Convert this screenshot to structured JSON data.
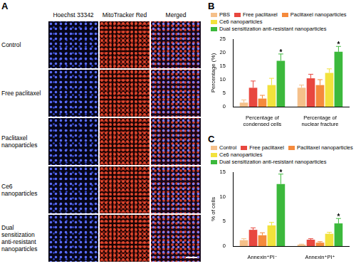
{
  "figure_a": {
    "letter": "A",
    "columns": [
      "Hoechst 33342",
      "MitoTracker Red",
      "Merged"
    ],
    "rows": [
      "Control",
      "Free paclitaxel",
      "Paclitaxel nanoparticles",
      "Ce6 nanoparticles",
      "Dual sensitization anti-resistant nanoparticles"
    ]
  },
  "chart_data": [
    {
      "letter": "B",
      "type": "bar",
      "categories": [
        "Percentage of condensed cells",
        "Percentage of nuclear fracture"
      ],
      "y_label": "Percentage (%)",
      "ylim": [
        0,
        25
      ],
      "yticks": [
        0,
        5,
        10,
        15,
        20,
        25
      ],
      "grid": false,
      "legend": "top",
      "series": [
        {
          "name": "PBS",
          "color": "#f5c08a",
          "values": [
            1.5,
            7
          ],
          "errors": [
            1,
            1
          ]
        },
        {
          "name": "Free paclitaxel",
          "color": "#e8473f",
          "values": [
            7,
            10.5
          ],
          "errors": [
            2.5,
            1.5
          ]
        },
        {
          "name": "Paclitaxel nanoparticles",
          "color": "#f58a3c",
          "values": [
            3,
            8
          ],
          "errors": [
            1.2,
            2
          ]
        },
        {
          "name": "Ce6 nanoparticles",
          "color": "#f2e23c",
          "values": [
            8,
            12.5
          ],
          "errors": [
            2.5,
            1.5
          ]
        },
        {
          "name": "Dual sensitization anti-resistant nanoparticles",
          "color": "#3cb93c",
          "values": [
            17,
            20.3
          ],
          "errors": [
            2.5,
            2
          ]
        }
      ],
      "annotations": [
        {
          "series": "Dual sensitization anti-resistant nanoparticles",
          "category": "Percentage of condensed cells",
          "text": "*"
        },
        {
          "series": "Dual sensitization anti-resistant nanoparticles",
          "category": "Percentage of nuclear fracture",
          "text": "*"
        }
      ]
    },
    {
      "letter": "C",
      "type": "bar",
      "categories": [
        "Annexin⁺PI⁻",
        "Annexin⁺PI⁺"
      ],
      "y_label": "% of cells",
      "ylim": [
        0,
        15
      ],
      "yticks": [
        0,
        5,
        10,
        15
      ],
      "grid": false,
      "legend": "top",
      "series": [
        {
          "name": "Control",
          "color": "#f5c08a",
          "values": [
            1.2,
            0.3
          ],
          "errors": [
            0.3,
            0.1
          ]
        },
        {
          "name": "Free paclitaxel",
          "color": "#e8473f",
          "values": [
            3.3,
            1.3
          ],
          "errors": [
            0.4,
            0.2
          ]
        },
        {
          "name": "Paclitaxel nanoparticles",
          "color": "#f58a3c",
          "values": [
            2.2,
            0.7
          ],
          "errors": [
            0.5,
            0.2
          ]
        },
        {
          "name": "Ce6 nanoparticles",
          "color": "#f2e23c",
          "values": [
            4.2,
            2.5
          ],
          "errors": [
            0.6,
            0.3
          ]
        },
        {
          "name": "Dual sensitization anti-resistant nanoparticles",
          "color": "#3cb93c",
          "values": [
            12.6,
            4.6
          ],
          "errors": [
            2,
            1
          ]
        }
      ],
      "annotations": [
        {
          "series": "Dual sensitization anti-resistant nanoparticles",
          "category": "Annexin⁺PI⁻",
          "text": "*"
        },
        {
          "series": "Dual sensitization anti-resistant nanoparticles",
          "category": "Annexin⁺PI⁺",
          "text": "*"
        }
      ]
    }
  ]
}
